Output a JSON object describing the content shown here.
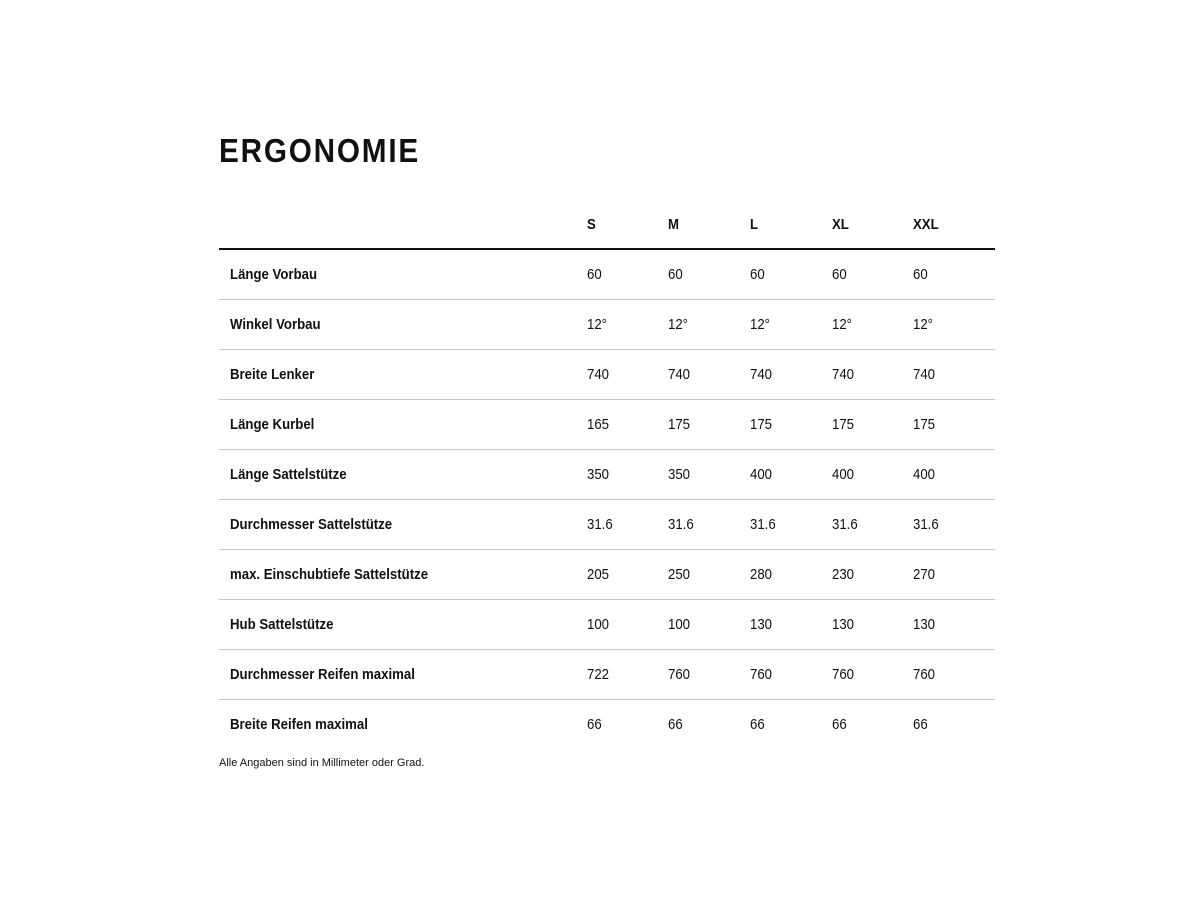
{
  "title": "ERGONOMIE",
  "columns": [
    "S",
    "M",
    "L",
    "XL",
    "XXL"
  ],
  "rows": [
    {
      "label": "Länge Vorbau",
      "values": [
        "60",
        "60",
        "60",
        "60",
        "60"
      ]
    },
    {
      "label": "Winkel Vorbau",
      "values": [
        "12°",
        "12°",
        "12°",
        "12°",
        "12°"
      ]
    },
    {
      "label": "Breite Lenker",
      "values": [
        "740",
        "740",
        "740",
        "740",
        "740"
      ]
    },
    {
      "label": "Länge Kurbel",
      "values": [
        "165",
        "175",
        "175",
        "175",
        "175"
      ]
    },
    {
      "label": "Länge Sattelstütze",
      "values": [
        "350",
        "350",
        "400",
        "400",
        "400"
      ]
    },
    {
      "label": "Durchmesser Sattelstütze",
      "values": [
        "31.6",
        "31.6",
        "31.6",
        "31.6",
        "31.6"
      ]
    },
    {
      "label": "max. Einschubtiefe Sattelstütze",
      "values": [
        "205",
        "250",
        "280",
        "230",
        "270"
      ]
    },
    {
      "label": "Hub Sattelstütze",
      "values": [
        "100",
        "100",
        "130",
        "130",
        "130"
      ]
    },
    {
      "label": "Durchmesser Reifen maximal",
      "values": [
        "722",
        "760",
        "760",
        "760",
        "760"
      ]
    },
    {
      "label": "Breite Reifen maximal",
      "values": [
        "66",
        "66",
        "66",
        "66",
        "66"
      ]
    }
  ],
  "footnote": "Alle Angaben sind in Millimeter oder Grad."
}
